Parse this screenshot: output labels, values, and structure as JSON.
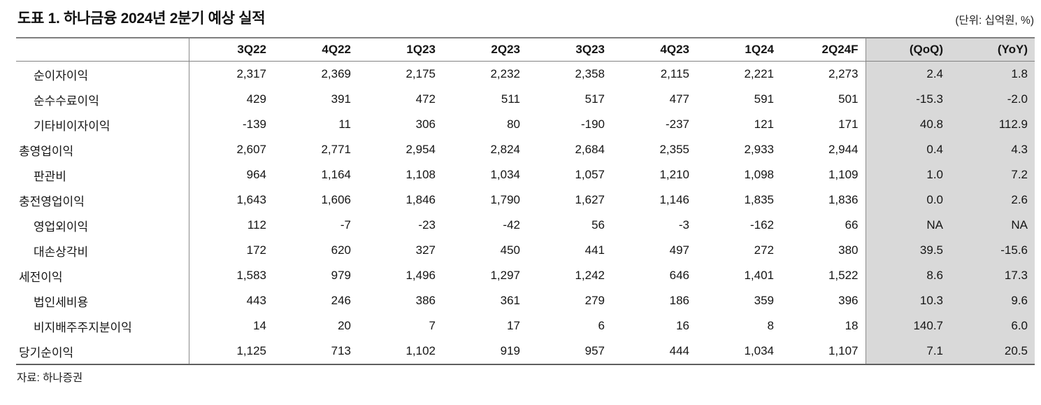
{
  "header": {
    "title": "도표 1. 하나금융 2024년 2분기 예상 실적",
    "unit_note": "(단위: 십억원, %)"
  },
  "footer": {
    "source_note": "자료: 하나증권"
  },
  "colors": {
    "highlight_bg": "#d9d9d9",
    "border": "#8a8a8a",
    "text": "#151515"
  },
  "chart_data": {
    "type": "table",
    "columns": [
      "",
      "3Q22",
      "4Q22",
      "1Q23",
      "2Q23",
      "3Q23",
      "4Q23",
      "1Q24",
      "2Q24F",
      "(QoQ)",
      "(YoY)"
    ],
    "highlight_columns": [
      "(QoQ)",
      "(YoY)"
    ],
    "rows": [
      {
        "label": "순이자이익",
        "indent": true,
        "values": [
          "2,317",
          "2,369",
          "2,175",
          "2,232",
          "2,358",
          "2,115",
          "2,221",
          "2,273",
          "2.4",
          "1.8"
        ]
      },
      {
        "label": "순수수료이익",
        "indent": true,
        "values": [
          "429",
          "391",
          "472",
          "511",
          "517",
          "477",
          "591",
          "501",
          "-15.3",
          "-2.0"
        ]
      },
      {
        "label": "기타비이자이익",
        "indent": true,
        "values": [
          "-139",
          "11",
          "306",
          "80",
          "-190",
          "-237",
          "121",
          "171",
          "40.8",
          "112.9"
        ]
      },
      {
        "label": "총영업이익",
        "indent": false,
        "values": [
          "2,607",
          "2,771",
          "2,954",
          "2,824",
          "2,684",
          "2,355",
          "2,933",
          "2,944",
          "0.4",
          "4.3"
        ]
      },
      {
        "label": "판관비",
        "indent": true,
        "values": [
          "964",
          "1,164",
          "1,108",
          "1,034",
          "1,057",
          "1,210",
          "1,098",
          "1,109",
          "1.0",
          "7.2"
        ]
      },
      {
        "label": "충전영업이익",
        "indent": false,
        "values": [
          "1,643",
          "1,606",
          "1,846",
          "1,790",
          "1,627",
          "1,146",
          "1,835",
          "1,836",
          "0.0",
          "2.6"
        ]
      },
      {
        "label": "영업외이익",
        "indent": true,
        "values": [
          "112",
          "-7",
          "-23",
          "-42",
          "56",
          "-3",
          "-162",
          "66",
          "NA",
          "NA"
        ]
      },
      {
        "label": "대손상각비",
        "indent": true,
        "values": [
          "172",
          "620",
          "327",
          "450",
          "441",
          "497",
          "272",
          "380",
          "39.5",
          "-15.6"
        ]
      },
      {
        "label": "세전이익",
        "indent": false,
        "values": [
          "1,583",
          "979",
          "1,496",
          "1,297",
          "1,242",
          "646",
          "1,401",
          "1,522",
          "8.6",
          "17.3"
        ]
      },
      {
        "label": "법인세비용",
        "indent": true,
        "values": [
          "443",
          "246",
          "386",
          "361",
          "279",
          "186",
          "359",
          "396",
          "10.3",
          "9.6"
        ]
      },
      {
        "label": "비지배주주지분이익",
        "indent": true,
        "values": [
          "14",
          "20",
          "7",
          "17",
          "6",
          "16",
          "8",
          "18",
          "140.7",
          "6.0"
        ]
      },
      {
        "label": "당기순이익",
        "indent": false,
        "values": [
          "1,125",
          "713",
          "1,102",
          "919",
          "957",
          "444",
          "1,034",
          "1,107",
          "7.1",
          "20.5"
        ]
      }
    ]
  }
}
